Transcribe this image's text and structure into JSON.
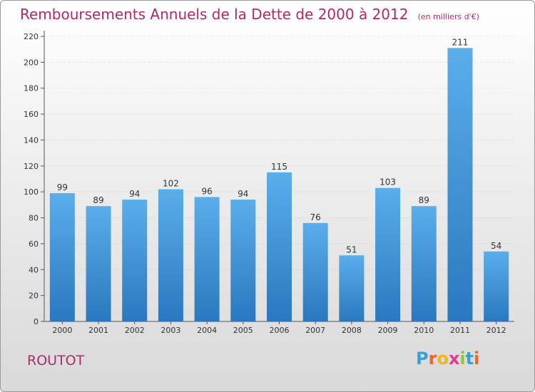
{
  "header": {
    "title": "Remboursements Annuels de la Dette de 2000 à 2012",
    "unit": "(en milliers d'€)"
  },
  "footer": {
    "commune": "ROUTOT",
    "logo": {
      "letters": [
        "P",
        "r",
        "o",
        "x",
        "i",
        "t",
        "i"
      ],
      "colors": [
        "#3aa0d8",
        "#e9692c",
        "#f2b51b",
        "#e23a8e",
        "#8dc63f",
        "#3aa0d8",
        "#e9692c"
      ]
    }
  },
  "colors": {
    "title": "#b0286a",
    "bar_top": "#5aaeea",
    "bar_bottom": "#2a78bf",
    "grid": "#cccccc"
  },
  "chart_data": {
    "type": "bar",
    "title": "Remboursements Annuels de la Dette de 2000 à 2012",
    "categories": [
      "2000",
      "2001",
      "2002",
      "2003",
      "2004",
      "2005",
      "2006",
      "2007",
      "2008",
      "2009",
      "2010",
      "2011",
      "2012"
    ],
    "values": [
      99,
      89,
      94,
      102,
      96,
      94,
      115,
      76,
      51,
      103,
      89,
      211,
      54
    ],
    "ylim": [
      0,
      220
    ],
    "yticks": [
      0,
      20,
      40,
      60,
      80,
      100,
      120,
      140,
      160,
      180,
      200,
      220
    ],
    "grid": true,
    "data_labels": true
  }
}
